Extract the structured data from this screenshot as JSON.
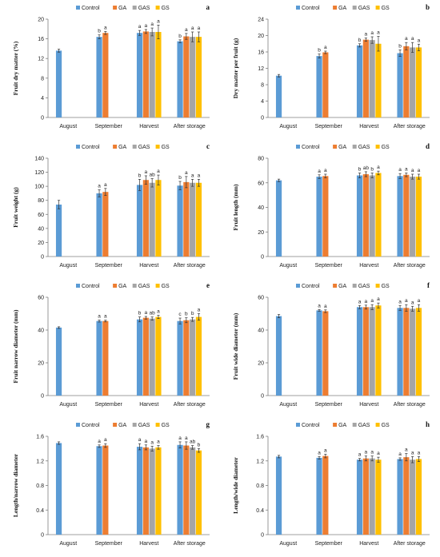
{
  "legend": [
    "Control",
    "GA",
    "GAS",
    "GS"
  ],
  "colors": [
    "#5b9bd5",
    "#ed7d31",
    "#a5a5a5",
    "#ffc000"
  ],
  "chart_data": [
    {
      "type": "bar",
      "panel": "a",
      "ylabel": "Fruit dry matter (%)",
      "categories": [
        "August",
        "September",
        "Harvest",
        "After storage"
      ],
      "ylim": [
        0,
        20
      ],
      "yticks": [
        0,
        4,
        8,
        12,
        16,
        20
      ],
      "series": [
        {
          "name": "Control",
          "values": [
            13.6,
            16.4,
            17.2,
            15.5
          ],
          "errors": [
            0.3,
            0.4,
            0.5,
            0.3
          ],
          "letters": [
            "",
            "b",
            "a",
            "b"
          ]
        },
        {
          "name": "GA",
          "values": [
            null,
            17.2,
            17.5,
            16.5
          ],
          "errors": [
            null,
            0.3,
            0.4,
            0.6
          ],
          "letters": [
            "",
            "a",
            "a",
            "a"
          ]
        },
        {
          "name": "GAS",
          "values": [
            null,
            null,
            17.4,
            16.4
          ],
          "errors": [
            null,
            null,
            0.8,
            1.0
          ],
          "letters": [
            "",
            "",
            "a",
            "a"
          ]
        },
        {
          "name": "GS",
          "values": [
            null,
            null,
            17.4,
            16.4
          ],
          "errors": [
            null,
            null,
            1.4,
            1.0
          ],
          "letters": [
            "",
            "",
            "a",
            "a"
          ]
        }
      ]
    },
    {
      "type": "bar",
      "panel": "b",
      "ylabel": "Dry matter per fruit (g)",
      "categories": [
        "August",
        "September",
        "Harvest",
        "After storage"
      ],
      "ylim": [
        0,
        24
      ],
      "yticks": [
        0,
        4,
        8,
        12,
        16,
        20,
        24
      ],
      "series": [
        {
          "name": "Control",
          "values": [
            10.2,
            15.0,
            17.6,
            15.7
          ],
          "errors": [
            0.3,
            0.5,
            0.4,
            0.8
          ],
          "letters": [
            "",
            "b",
            "b",
            "b"
          ]
        },
        {
          "name": "GA",
          "values": [
            null,
            15.9,
            19.0,
            17.4
          ],
          "errors": [
            null,
            0.3,
            0.4,
            0.9
          ],
          "letters": [
            "",
            "a",
            "a",
            "a"
          ]
        },
        {
          "name": "GAS",
          "values": [
            null,
            null,
            18.9,
            17.1
          ],
          "errors": [
            null,
            null,
            0.8,
            1.2
          ],
          "letters": [
            "",
            "",
            "a",
            "a"
          ]
        },
        {
          "name": "GS",
          "values": [
            null,
            null,
            18.0,
            17.1
          ],
          "errors": [
            null,
            null,
            1.8,
            0.8
          ],
          "letters": [
            "",
            "",
            "a",
            "a"
          ]
        }
      ]
    },
    {
      "type": "bar",
      "panel": "c",
      "ylabel": "Fruit weight (g)",
      "categories": [
        "August",
        "September",
        "Harvest",
        "After storage"
      ],
      "ylim": [
        0,
        140
      ],
      "yticks": [
        0,
        20,
        40,
        60,
        80,
        100,
        120,
        140
      ],
      "series": [
        {
          "name": "Control",
          "values": [
            74,
            90,
            102,
            101
          ],
          "errors": [
            6,
            5,
            8,
            6
          ],
          "letters": [
            "",
            "a",
            "b",
            "b"
          ]
        },
        {
          "name": "GA",
          "values": [
            null,
            92,
            109,
            106
          ],
          "errors": [
            null,
            5,
            6,
            8
          ],
          "letters": [
            "",
            "a",
            "a",
            "a"
          ]
        },
        {
          "name": "GAS",
          "values": [
            null,
            null,
            105,
            105
          ],
          "errors": [
            null,
            null,
            6,
            5
          ],
          "letters": [
            "",
            "",
            "ab",
            "a"
          ]
        },
        {
          "name": "GS",
          "values": [
            null,
            null,
            109,
            105
          ],
          "errors": [
            null,
            null,
            7,
            5
          ],
          "letters": [
            "",
            "",
            "a",
            "a"
          ]
        }
      ]
    },
    {
      "type": "bar",
      "panel": "d",
      "ylabel": "Fruit length (mm)",
      "categories": [
        "August",
        "September",
        "Harvest",
        "After storage"
      ],
      "ylim": [
        0,
        80
      ],
      "yticks": [
        0,
        20,
        40,
        60,
        80
      ],
      "series": [
        {
          "name": "Control",
          "values": [
            62,
            65,
            66,
            65.5
          ],
          "errors": [
            1,
            1.5,
            2,
            2
          ],
          "letters": [
            "",
            "a",
            "b",
            "a"
          ]
        },
        {
          "name": "GA",
          "values": [
            null,
            65.5,
            67,
            66.5
          ],
          "errors": [
            null,
            1.5,
            2,
            1.5
          ],
          "letters": [
            "",
            "a",
            "ab",
            "a"
          ]
        },
        {
          "name": "GAS",
          "values": [
            null,
            null,
            66,
            65
          ],
          "errors": [
            null,
            null,
            2,
            2
          ],
          "letters": [
            "",
            "",
            "b",
            "a"
          ]
        },
        {
          "name": "GS",
          "values": [
            null,
            null,
            68,
            65
          ],
          "errors": [
            null,
            null,
            1.5,
            2
          ],
          "letters": [
            "",
            "",
            "a",
            "a"
          ]
        }
      ]
    },
    {
      "type": "bar",
      "panel": "e",
      "ylabel": "Fruit narrow diameter (mm)",
      "categories": [
        "August",
        "September",
        "Harvest",
        "After storage"
      ],
      "ylim": [
        0,
        60
      ],
      "yticks": [
        0,
        20,
        40,
        60
      ],
      "series": [
        {
          "name": "Control",
          "values": [
            41.5,
            45.5,
            46.5,
            45.5
          ],
          "errors": [
            0.5,
            0.6,
            1.5,
            1.8
          ],
          "letters": [
            "",
            "a",
            "b",
            "c"
          ]
        },
        {
          "name": "GA",
          "values": [
            null,
            45.5,
            47.5,
            46
          ],
          "errors": [
            null,
            0.5,
            0.8,
            1.5
          ],
          "letters": [
            "",
            "a",
            "a",
            "b"
          ]
        },
        {
          "name": "GAS",
          "values": [
            null,
            null,
            47,
            46.5
          ],
          "errors": [
            null,
            null,
            1.0,
            1.2
          ],
          "letters": [
            "",
            "",
            "ab",
            "b"
          ]
        },
        {
          "name": "GS",
          "values": [
            null,
            null,
            48,
            48
          ],
          "errors": [
            null,
            null,
            1.0,
            2.0
          ],
          "letters": [
            "",
            "",
            "a",
            "a"
          ]
        }
      ]
    },
    {
      "type": "bar",
      "panel": "f",
      "ylabel": "Fruit wide diameter (mm)",
      "categories": [
        "August",
        "September",
        "Harvest",
        "After storage"
      ],
      "ylim": [
        0,
        60
      ],
      "yticks": [
        0,
        20,
        40,
        60
      ],
      "series": [
        {
          "name": "Control",
          "values": [
            48.5,
            52,
            54,
            53.5
          ],
          "errors": [
            1,
            0.5,
            1,
            1.5
          ],
          "letters": [
            "",
            "a",
            "a",
            "a"
          ]
        },
        {
          "name": "GA",
          "values": [
            null,
            51.5,
            54,
            53.5
          ],
          "errors": [
            null,
            0.8,
            1.2,
            2
          ],
          "letters": [
            "",
            "a",
            "a",
            "a"
          ]
        },
        {
          "name": "GAS",
          "values": [
            null,
            null,
            54,
            53
          ],
          "errors": [
            null,
            null,
            1.5,
            1.5
          ],
          "letters": [
            "",
            "",
            "a",
            "a"
          ]
        },
        {
          "name": "GS",
          "values": [
            null,
            null,
            55,
            53.5
          ],
          "errors": [
            null,
            null,
            1.5,
            2
          ],
          "letters": [
            "",
            "",
            "a",
            "a"
          ]
        }
      ]
    },
    {
      "type": "bar",
      "panel": "g",
      "ylabel": "Length/narrow diameter",
      "categories": [
        "August",
        "September",
        "Harvest",
        "After storage"
      ],
      "ylim": [
        0,
        1.6
      ],
      "yticks": [
        0,
        0.4,
        0.8,
        1.2,
        1.6
      ],
      "series": [
        {
          "name": "Control",
          "values": [
            1.49,
            1.44,
            1.43,
            1.46
          ],
          "errors": [
            0.02,
            0.02,
            0.05,
            0.05
          ],
          "letters": [
            "",
            "a",
            "a",
            "a"
          ]
        },
        {
          "name": "GA",
          "values": [
            null,
            1.45,
            1.42,
            1.45
          ],
          "errors": [
            null,
            0.03,
            0.04,
            0.06
          ],
          "letters": [
            "",
            "a",
            "a",
            "a"
          ]
        },
        {
          "name": "GAS",
          "values": [
            null,
            null,
            1.4,
            1.42
          ],
          "errors": [
            null,
            null,
            0.04,
            0.03
          ],
          "letters": [
            "",
            "",
            "a",
            "ab"
          ]
        },
        {
          "name": "GS",
          "values": [
            null,
            null,
            1.42,
            1.37
          ],
          "errors": [
            null,
            null,
            0.03,
            0.03
          ],
          "letters": [
            "",
            "",
            "a",
            "b"
          ]
        }
      ]
    },
    {
      "type": "bar",
      "panel": "h",
      "ylabel": "Length/wide diameter",
      "categories": [
        "August",
        "September",
        "Harvest",
        "After storage"
      ],
      "ylim": [
        0,
        1.6
      ],
      "yticks": [
        0,
        0.4,
        0.8,
        1.2,
        1.6
      ],
      "series": [
        {
          "name": "Control",
          "values": [
            1.27,
            1.25,
            1.22,
            1.23
          ],
          "errors": [
            0.02,
            0.02,
            0.02,
            0.02
          ],
          "letters": [
            "",
            "a",
            "a",
            "a"
          ]
        },
        {
          "name": "GA",
          "values": [
            null,
            1.28,
            1.24,
            1.26
          ],
          "errors": [
            null,
            0.03,
            0.04,
            0.06
          ],
          "letters": [
            "",
            "a",
            "a",
            "a"
          ]
        },
        {
          "name": "GAS",
          "values": [
            null,
            null,
            1.24,
            1.22
          ],
          "errors": [
            null,
            null,
            0.04,
            0.05
          ],
          "letters": [
            "",
            "",
            "a",
            "a"
          ]
        },
        {
          "name": "GS",
          "values": [
            null,
            null,
            1.22,
            1.23
          ],
          "errors": [
            null,
            null,
            0.04,
            0.04
          ],
          "letters": [
            "",
            "",
            "a",
            "a"
          ]
        }
      ]
    }
  ]
}
